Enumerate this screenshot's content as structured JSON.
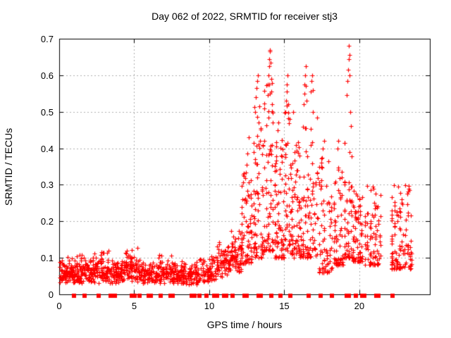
{
  "chart_data": {
    "type": "scatter",
    "title": "Day 062 of 2022, SRMTID for receiver stj3",
    "xlabel": "GPS time / hours",
    "ylabel": "SRMTID / TECUs",
    "xlim": [
      0,
      24.7
    ],
    "ylim": [
      0,
      0.7
    ],
    "xticks": [
      0,
      5,
      10,
      15,
      20
    ],
    "yticks": [
      0,
      0.1,
      0.2,
      0.3,
      0.4,
      0.5,
      0.6,
      0.7
    ],
    "grid": true,
    "marker": "plus",
    "baseline_marker_shape": "filled-square",
    "colors": {
      "points": "#ff0000",
      "grid": "#b0b0b0",
      "axis": "#000000",
      "text": "#000000",
      "background": "#ffffff"
    },
    "seed": 20220621,
    "point_clusters": [
      {
        "x0": 0.02,
        "x1": 1.0,
        "n": 100,
        "y0": 0.03,
        "y1": 0.105,
        "shape": "band",
        "streaks": 0
      },
      {
        "x0": 1.0,
        "x1": 2.1,
        "n": 100,
        "y0": 0.028,
        "y1": 0.118,
        "shape": "band",
        "streaks": 0
      },
      {
        "x0": 2.1,
        "x1": 3.3,
        "n": 100,
        "y0": 0.03,
        "y1": 0.135,
        "shape": "band",
        "streaks": 0
      },
      {
        "x0": 3.3,
        "x1": 4.3,
        "n": 85,
        "y0": 0.027,
        "y1": 0.105,
        "shape": "band",
        "streaks": 0
      },
      {
        "x0": 4.3,
        "x1": 5.4,
        "n": 95,
        "y0": 0.03,
        "y1": 0.138,
        "shape": "band",
        "streaks": 0
      },
      {
        "x0": 5.4,
        "x1": 6.6,
        "n": 90,
        "y0": 0.03,
        "y1": 0.095,
        "shape": "band",
        "streaks": 0
      },
      {
        "x0": 6.6,
        "x1": 7.8,
        "n": 95,
        "y0": 0.03,
        "y1": 0.122,
        "shape": "band",
        "streaks": 0
      },
      {
        "x0": 7.8,
        "x1": 9.4,
        "n": 120,
        "y0": 0.025,
        "y1": 0.098,
        "shape": "band",
        "streaks": 0
      },
      {
        "x0": 9.4,
        "x1": 10.5,
        "n": 75,
        "y0": 0.032,
        "y1": 0.112,
        "shape": "band",
        "streaks": 0
      },
      {
        "x0": 10.5,
        "x1": 11.35,
        "n": 65,
        "y0": 0.045,
        "y1": 0.155,
        "shape": "band",
        "streaks": 0
      },
      {
        "x0": 11.35,
        "x1": 12.15,
        "n": 70,
        "y0": 0.06,
        "y1": 0.195,
        "shape": "band",
        "streaks": 0
      },
      {
        "x0": 12.15,
        "x1": 12.95,
        "n": 75,
        "y0": 0.085,
        "y1": 0.34,
        "shape": "column",
        "streaks": 6
      },
      {
        "x0": 12.95,
        "x1": 13.65,
        "n": 70,
        "y0": 0.1,
        "y1": 0.52,
        "shape": "column",
        "streaks": 6
      },
      {
        "x0": 13.65,
        "x1": 14.35,
        "n": 70,
        "y0": 0.12,
        "y1": 0.58,
        "shape": "column",
        "streaks": 5
      },
      {
        "x0": 14.35,
        "x1": 15.05,
        "n": 70,
        "y0": 0.1,
        "y1": 0.44,
        "shape": "column",
        "streaks": 6
      },
      {
        "x0": 15.05,
        "x1": 15.65,
        "n": 60,
        "y0": 0.11,
        "y1": 0.52,
        "shape": "column",
        "streaks": 5
      },
      {
        "x0": 15.65,
        "x1": 16.25,
        "n": 60,
        "y0": 0.1,
        "y1": 0.46,
        "shape": "column",
        "streaks": 5
      },
      {
        "x0": 16.25,
        "x1": 17.35,
        "n": 85,
        "y0": 0.1,
        "y1": 0.5,
        "shape": "column",
        "streaks": 7
      },
      {
        "x0": 17.35,
        "x1": 18.3,
        "n": 75,
        "y0": 0.06,
        "y1": 0.38,
        "shape": "column",
        "streaks": 6
      },
      {
        "x0": 18.3,
        "x1": 19.0,
        "n": 60,
        "y0": 0.08,
        "y1": 0.38,
        "shape": "column",
        "streaks": 5
      },
      {
        "x0": 19.0,
        "x1": 19.6,
        "n": 55,
        "y0": 0.1,
        "y1": 0.42,
        "shape": "column",
        "streaks": 4
      },
      {
        "x0": 19.6,
        "x1": 20.3,
        "n": 70,
        "y0": 0.09,
        "y1": 0.295,
        "shape": "column",
        "streaks": 5
      },
      {
        "x0": 20.4,
        "x1": 21.55,
        "n": 80,
        "y0": 0.08,
        "y1": 0.3,
        "shape": "column",
        "streaks": 7
      },
      {
        "x0": 22.15,
        "x1": 23.6,
        "n": 115,
        "y0": 0.07,
        "y1": 0.3,
        "shape": "column",
        "streaks": 8
      }
    ],
    "spike_points": [
      [
        12.5,
        0.355
      ],
      [
        12.55,
        0.385
      ],
      [
        12.62,
        0.43
      ],
      [
        13.05,
        0.5
      ],
      [
        13.1,
        0.54
      ],
      [
        13.15,
        0.565
      ],
      [
        13.18,
        0.585
      ],
      [
        13.22,
        0.6
      ],
      [
        13.28,
        0.47
      ],
      [
        13.35,
        0.515
      ],
      [
        13.42,
        0.455
      ],
      [
        13.88,
        0.545
      ],
      [
        13.92,
        0.575
      ],
      [
        13.95,
        0.6
      ],
      [
        13.98,
        0.625
      ],
      [
        14.0,
        0.645
      ],
      [
        14.02,
        0.665
      ],
      [
        14.05,
        0.67
      ],
      [
        14.08,
        0.635
      ],
      [
        14.12,
        0.59
      ],
      [
        14.15,
        0.555
      ],
      [
        14.2,
        0.52
      ],
      [
        14.55,
        0.45
      ],
      [
        14.6,
        0.47
      ],
      [
        15.08,
        0.5
      ],
      [
        15.12,
        0.53
      ],
      [
        15.15,
        0.555
      ],
      [
        15.18,
        0.575
      ],
      [
        15.22,
        0.6
      ],
      [
        15.28,
        0.52
      ],
      [
        15.35,
        0.48
      ],
      [
        16.28,
        0.52
      ],
      [
        16.32,
        0.55
      ],
      [
        16.35,
        0.575
      ],
      [
        16.38,
        0.6
      ],
      [
        16.42,
        0.625
      ],
      [
        16.45,
        0.57
      ],
      [
        16.5,
        0.53
      ],
      [
        16.75,
        0.555
      ],
      [
        16.8,
        0.585
      ],
      [
        16.85,
        0.6
      ],
      [
        16.9,
        0.56
      ],
      [
        17.55,
        0.4
      ],
      [
        17.65,
        0.42
      ],
      [
        18.55,
        0.4
      ],
      [
        18.6,
        0.42
      ],
      [
        19.18,
        0.545
      ],
      [
        19.22,
        0.585
      ],
      [
        19.25,
        0.615
      ],
      [
        19.28,
        0.645
      ],
      [
        19.3,
        0.68
      ],
      [
        19.33,
        0.655
      ],
      [
        19.36,
        0.6
      ],
      [
        19.4,
        0.5
      ],
      [
        19.45,
        0.46
      ],
      [
        20.9,
        0.295
      ],
      [
        22.6,
        0.295
      ],
      [
        23.3,
        0.29
      ],
      [
        23.35,
        0.285
      ]
    ],
    "baseline_marker_hours": [
      0.99,
      1.69,
      2.63,
      3.43,
      3.71,
      4.84,
      5.03,
      5.35,
      5.97,
      6.11,
      6.77,
      7.42,
      7.56,
      8.83,
      9.02,
      9.34,
      9.81,
      10.33,
      10.52,
      10.99,
      11.13,
      11.55,
      12.35,
      12.49,
      13.29,
      13.43,
      14.13,
      14.74,
      15.4,
      16.62,
      17.42,
      18.17,
      19.16,
      19.3,
      19.77,
      20.19,
      20.33,
      21.13,
      21.27,
      22.21
    ]
  }
}
